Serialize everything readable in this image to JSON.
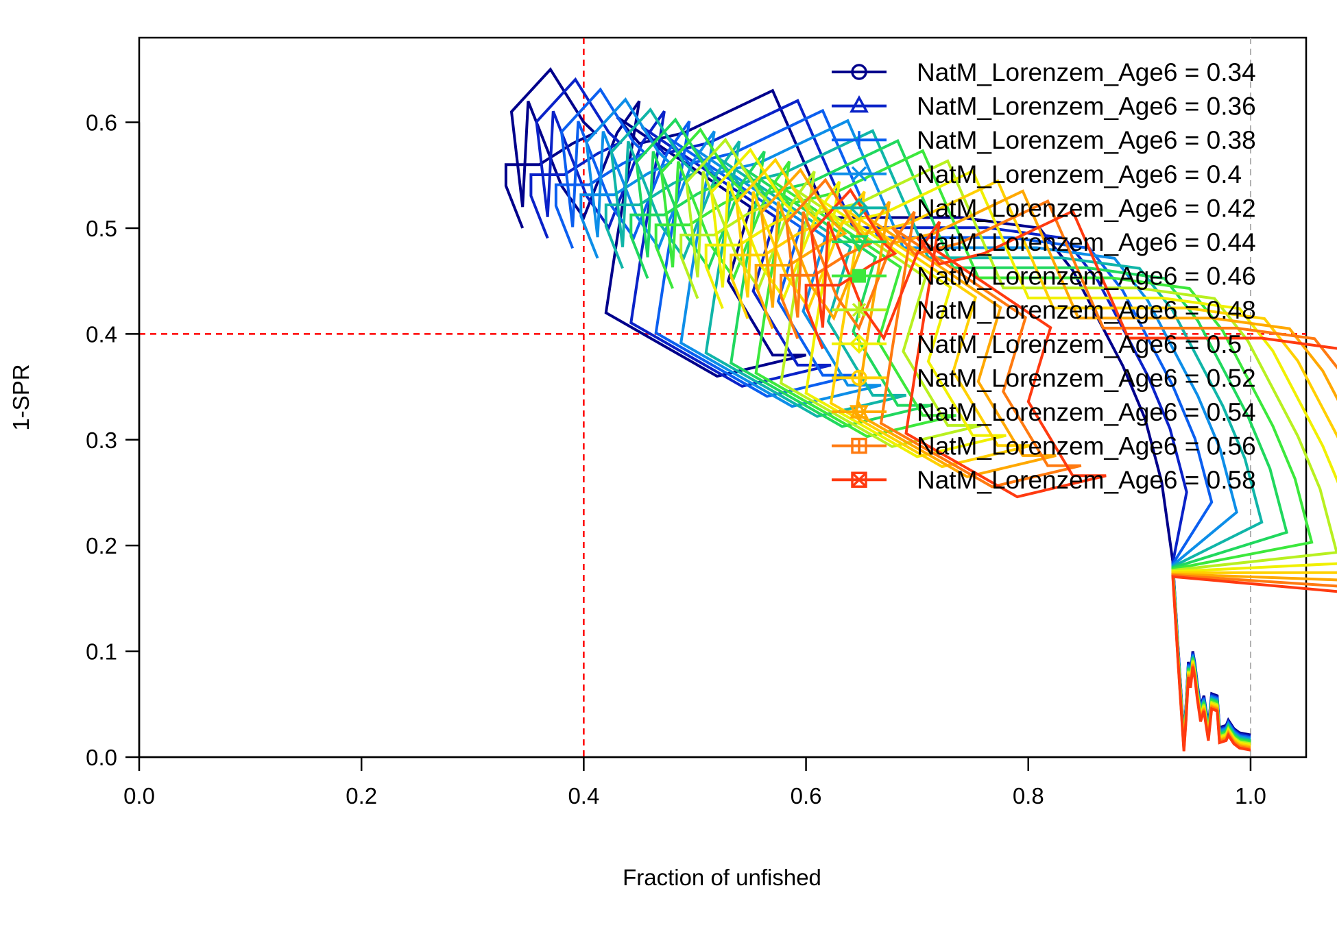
{
  "chart_data": {
    "type": "line",
    "title": "",
    "xlabel": "Fraction of unfished",
    "ylabel": "1-SPR",
    "xlim": [
      0,
      1.05
    ],
    "ylim": [
      0,
      0.68
    ],
    "xticks": [
      "0.0",
      "0.2",
      "0.4",
      "0.6",
      "0.8",
      "1.0"
    ],
    "yticks": [
      "0.0",
      "0.1",
      "0.2",
      "0.3",
      "0.4",
      "0.5",
      "0.6"
    ],
    "reference_lines": {
      "x": 0.4,
      "y": 0.4,
      "x_unfished": 1.0
    },
    "legend_position": "top-right",
    "grid": false,
    "base_series": {
      "x": [
        1.0,
        0.99,
        0.985,
        0.98,
        0.978,
        0.972,
        0.97,
        0.965,
        0.962,
        0.958,
        0.955,
        0.952,
        0.95,
        0.948,
        0.946,
        0.944,
        0.942,
        0.94,
        0.935,
        0.93,
        0.92,
        0.905,
        0.885,
        0.86,
        0.84,
        0.81,
        0.74,
        0.66,
        0.62,
        0.57,
        0.49,
        0.45,
        0.43,
        0.55,
        0.53,
        0.57,
        0.6,
        0.52,
        0.42,
        0.43,
        0.45,
        0.43,
        0.4,
        0.38,
        0.35,
        0.345,
        0.335,
        0.37,
        0.4,
        0.41,
        0.39,
        0.36,
        0.33,
        0.33,
        0.345
      ],
      "y": [
        0.021,
        0.023,
        0.027,
        0.035,
        0.03,
        0.028,
        0.058,
        0.06,
        0.03,
        0.058,
        0.048,
        0.07,
        0.088,
        0.1,
        0.08,
        0.09,
        0.05,
        0.02,
        0.1,
        0.185,
        0.26,
        0.32,
        0.37,
        0.42,
        0.46,
        0.5,
        0.51,
        0.51,
        0.51,
        0.63,
        0.59,
        0.58,
        0.605,
        0.52,
        0.45,
        0.38,
        0.38,
        0.36,
        0.42,
        0.49,
        0.62,
        0.59,
        0.51,
        0.54,
        0.62,
        0.52,
        0.61,
        0.65,
        0.6,
        0.59,
        0.58,
        0.56,
        0.56,
        0.54,
        0.5
      ]
    },
    "series": [
      {
        "name": "NatM_Lorenzem_Age6 = 0.34",
        "color": "#00008b",
        "marker": "circle"
      },
      {
        "name": "NatM_Lorenzem_Age6 = 0.36",
        "color": "#0a22c8",
        "marker": "triangle"
      },
      {
        "name": "NatM_Lorenzem_Age6 = 0.38",
        "color": "#0b5ff0",
        "marker": "plus"
      },
      {
        "name": "NatM_Lorenzem_Age6 = 0.4",
        "color": "#0d8ee8",
        "marker": "x"
      },
      {
        "name": "NatM_Lorenzem_Age6 = 0.42",
        "color": "#10b5a8",
        "marker": "diamond"
      },
      {
        "name": "NatM_Lorenzem_Age6 = 0.44",
        "color": "#20d85e",
        "marker": "triangle-down"
      },
      {
        "name": "NatM_Lorenzem_Age6 = 0.46",
        "color": "#3ce83c",
        "marker": "square"
      },
      {
        "name": "NatM_Lorenzem_Age6 = 0.48",
        "color": "#b8f020",
        "marker": "asterisk"
      },
      {
        "name": "NatM_Lorenzem_Age6 = 0.5",
        "color": "#f0f000",
        "marker": "diamond-plus"
      },
      {
        "name": "NatM_Lorenzem_Age6 = 0.52",
        "color": "#ffd000",
        "marker": "circle-plus"
      },
      {
        "name": "NatM_Lorenzem_Age6 = 0.54",
        "color": "#ffa800",
        "marker": "star"
      },
      {
        "name": "NatM_Lorenzem_Age6 = 0.56",
        "color": "#ff7a10",
        "marker": "square-plus"
      },
      {
        "name": "NatM_Lorenzem_Age6 = 0.58",
        "color": "#ff3a10",
        "marker": "square-x"
      }
    ],
    "series_shift": {
      "dx_per_series": 0.0225,
      "dy_per_series": -0.0095,
      "applies_from_x_below": 0.93
    }
  }
}
